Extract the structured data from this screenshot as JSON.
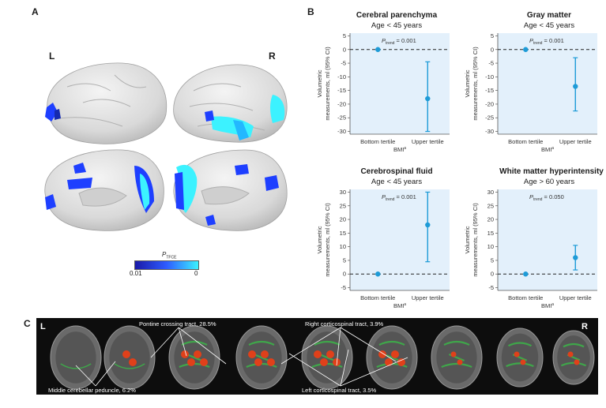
{
  "panels": {
    "a": "A",
    "b": "B",
    "c": "C"
  },
  "brain": {
    "left_label": "L",
    "right_label": "R"
  },
  "colorbar": {
    "title_main": "P",
    "title_sub": "TFCE",
    "min_label": "0.01",
    "max_label": "0",
    "colors": [
      "#1a1aa8",
      "#2e5cff",
      "#3cf2ff"
    ]
  },
  "ylabel_line1": "Volumetric",
  "ylabel_line2": "measurements, ml (95% CI)",
  "xlabel_main": "BMI",
  "xlabel_sup": "a",
  "p_prefix": "P",
  "p_sub": "trend",
  "chart_data": [
    {
      "type": "scatter",
      "title": "Cerebral parenchyma",
      "subtitle": "Age < 45 years",
      "p_value": "= 0.001",
      "categories": [
        "Bottom tertile",
        "Upper tertile"
      ],
      "values": [
        0,
        -18
      ],
      "ci_low": [
        0,
        -30
      ],
      "ci_high": [
        0,
        -4.5
      ],
      "ylim": [
        -31,
        6
      ],
      "yticks": [
        5,
        0,
        -5,
        -10,
        -15,
        -20,
        -25,
        -30
      ],
      "reference_line": 0
    },
    {
      "type": "scatter",
      "title": "Gray matter",
      "subtitle": "Age < 45 years",
      "p_value": "= 0.001",
      "categories": [
        "Bottom tertile",
        "Upper tertile"
      ],
      "values": [
        0,
        -13.5
      ],
      "ci_low": [
        0,
        -22.5
      ],
      "ci_high": [
        0,
        -3
      ],
      "ylim": [
        -31,
        6
      ],
      "yticks": [
        5,
        0,
        -5,
        -10,
        -15,
        -20,
        -25,
        -30
      ],
      "reference_line": 0
    },
    {
      "type": "scatter",
      "title": "Cerebrospinal fluid",
      "subtitle": "Age < 45 years",
      "p_value": "= 0.001",
      "categories": [
        "Bottom tertile",
        "Upper tertile"
      ],
      "values": [
        0,
        18
      ],
      "ci_low": [
        0,
        4.5
      ],
      "ci_high": [
        0,
        30
      ],
      "ylim": [
        -6,
        31
      ],
      "yticks": [
        30,
        25,
        20,
        15,
        10,
        5,
        0,
        -5
      ],
      "reference_line": 0
    },
    {
      "type": "scatter",
      "title": "White matter hyperintensity",
      "subtitle": "Age > 60 years",
      "p_value": "= 0.050",
      "categories": [
        "Bottom tertile",
        "Upper tertile"
      ],
      "values": [
        0,
        6
      ],
      "ci_low": [
        0,
        1.5
      ],
      "ci_high": [
        0,
        10.5
      ],
      "ylim": [
        -6,
        31
      ],
      "yticks": [
        30,
        25,
        20,
        15,
        10,
        5,
        0,
        -5
      ],
      "reference_line": 0
    }
  ],
  "strip": {
    "left_label": "L",
    "right_label": "R",
    "annotations": {
      "pontine": "Pontine crossing tract, 28.5%",
      "right_cst": "Right corticospinal tract,   3.9%",
      "mcp": "Middle cerebellar peduncle, 6.2%",
      "left_cst": "Left corticospinal tract,   3.5%"
    }
  },
  "colors": {
    "accent": "#1e9bd7",
    "plot_bg": "#e3f0fb",
    "tract_green": "#3fa64a",
    "tract_red": "#e0401a"
  }
}
